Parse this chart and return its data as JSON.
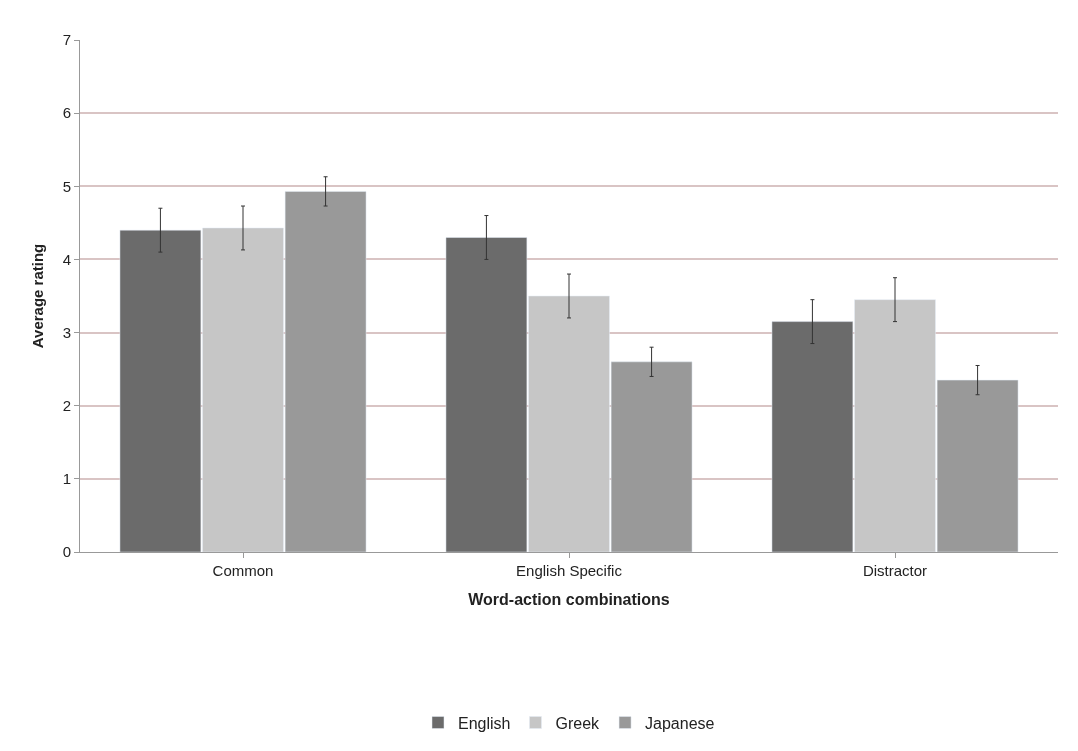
{
  "chart_data": {
    "type": "bar",
    "xlabel": "Word-action combinations",
    "ylabel": "Average rating",
    "categories": [
      "Common",
      "English Specific",
      "Distractor"
    ],
    "series": [
      {
        "name": "English",
        "color": "#6b6b6b",
        "values": [
          4.4,
          4.3,
          3.15
        ],
        "errors": [
          0.3,
          0.3,
          0.3
        ]
      },
      {
        "name": "Greek",
        "color": "#c6c6c6",
        "values": [
          4.43,
          3.5,
          3.45
        ],
        "errors": [
          0.3,
          0.3,
          0.3
        ]
      },
      {
        "name": "Japanese",
        "color": "#999999",
        "values": [
          4.93,
          2.6,
          2.35
        ],
        "errors": [
          0.2,
          0.2,
          0.2
        ]
      }
    ],
    "ylim": [
      0,
      7
    ],
    "yticks": [
      0,
      1,
      2,
      3,
      4,
      5,
      6,
      7
    ],
    "grid": "y",
    "legend": "bottom"
  }
}
